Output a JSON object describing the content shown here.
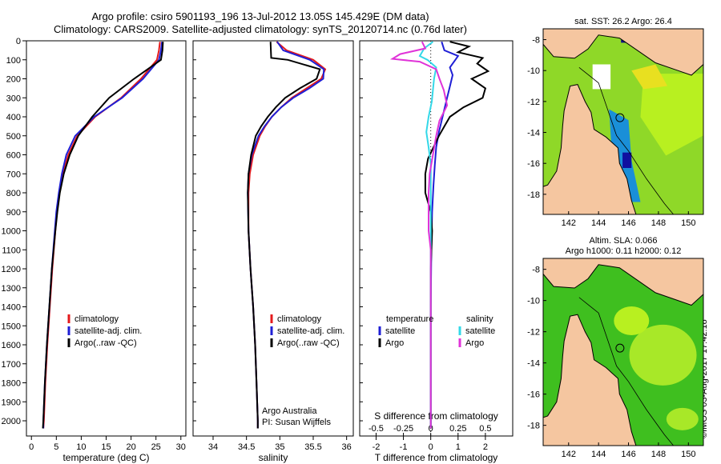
{
  "header": {
    "title_line1": "Argo profile: csiro 5901193_196 13-Jul-2012 13.05S 145.429E (DM data)",
    "title_line2": "Climatology: CARS2009. Satellite-adjusted climatology: synTS_20120714.nc (0.76d later)"
  },
  "credit": "©IMOS 03-Aug-2017 17:42:18",
  "colors": {
    "climatology": "#e41a1c",
    "satellite": "#1f1fd6",
    "argo": "#000000",
    "sat_salinity": "#33d8e8",
    "argo_salinity": "#e033d8",
    "land": "#f5c6a0",
    "green_dark": "#3fbf1f",
    "green_light": "#b8f020",
    "yellow": "#e8e020",
    "blue_band": "#1a8fd8"
  },
  "chart_data": [
    {
      "id": "temperature",
      "type": "line",
      "xlabel": "temperature (deg C)",
      "ylabel": "",
      "xlim": [
        -1,
        31
      ],
      "ylim": [
        2080,
        0
      ],
      "xticks": [
        0,
        5,
        10,
        15,
        20,
        25,
        30
      ],
      "yticks": [
        0,
        100,
        200,
        300,
        400,
        500,
        600,
        700,
        800,
        900,
        1000,
        1100,
        1200,
        1300,
        1400,
        1500,
        1600,
        1700,
        1800,
        1900,
        2000
      ],
      "legend": [
        "climatology",
        "satellite-adj. clim.",
        "Argo(..raw -QC)"
      ],
      "series": [
        {
          "name": "climatology",
          "color_key": "climatology",
          "depth": [
            5,
            50,
            100,
            200,
            300,
            400,
            500,
            600,
            700,
            800,
            900,
            1000,
            1200,
            1400,
            1600,
            1800,
            2000,
            2040
          ],
          "values": [
            25.8,
            25.6,
            25.2,
            22.0,
            18.0,
            12.8,
            9.2,
            7.4,
            6.3,
            5.6,
            5.1,
            4.8,
            4.2,
            3.7,
            3.2,
            2.8,
            2.5,
            2.4
          ]
        },
        {
          "name": "satellite-adj. clim.",
          "color_key": "satellite",
          "depth": [
            5,
            50,
            100,
            200,
            300,
            400,
            500,
            600,
            700,
            800,
            900,
            1000,
            1200,
            1400,
            1600,
            1800,
            2000,
            2040
          ],
          "values": [
            26.2,
            26.0,
            25.6,
            22.4,
            18.2,
            12.6,
            8.8,
            7.0,
            6.1,
            5.5,
            5.0,
            4.7,
            4.1,
            3.6,
            3.1,
            2.7,
            2.4,
            2.4
          ]
        },
        {
          "name": "Argo(..raw -QC)",
          "color_key": "argo",
          "depth": [
            5,
            50,
            100,
            200,
            300,
            400,
            500,
            600,
            700,
            800,
            900,
            1000,
            1200,
            1400,
            1600,
            1800,
            2000,
            2040
          ],
          "values": [
            26.4,
            26.3,
            26.0,
            20.6,
            15.6,
            12.2,
            9.4,
            7.7,
            6.5,
            5.7,
            5.2,
            4.8,
            4.1,
            3.6,
            3.1,
            2.7,
            2.4,
            2.3
          ]
        }
      ]
    },
    {
      "id": "salinity",
      "type": "line",
      "xlabel": "salinity",
      "ylabel": "",
      "xlim": [
        33.7,
        36.1
      ],
      "ylim": [
        2080,
        0
      ],
      "xticks": [
        34,
        34.5,
        35,
        35.5,
        36
      ],
      "legend": [
        "climatology",
        "satellite-adj. clim.",
        "Argo(..raw -QC)"
      ],
      "annotation_line1": "Argo Australia",
      "annotation_line2": "PI: Susan Wijffels",
      "series": [
        {
          "name": "climatology",
          "color_key": "climatology",
          "depth": [
            5,
            50,
            100,
            150,
            200,
            250,
            300,
            350,
            400,
            450,
            500,
            600,
            700,
            800,
            1000,
            1200,
            1400,
            1600,
            1800,
            2000,
            2040
          ],
          "values": [
            34.95,
            35.1,
            35.5,
            35.68,
            35.62,
            35.4,
            35.18,
            35.02,
            34.88,
            34.78,
            34.7,
            34.6,
            34.55,
            34.53,
            34.53,
            34.56,
            34.6,
            34.63,
            34.65,
            34.67,
            34.67
          ]
        },
        {
          "name": "satellite-adj. clim.",
          "color_key": "satellite",
          "depth": [
            5,
            50,
            100,
            150,
            200,
            250,
            300,
            350,
            400,
            450,
            500,
            600,
            700,
            800,
            1000,
            1200,
            1400,
            1600,
            1800,
            2000,
            2040
          ],
          "values": [
            34.96,
            35.05,
            35.45,
            35.66,
            35.65,
            35.44,
            35.2,
            35.02,
            34.88,
            34.77,
            34.68,
            34.58,
            34.53,
            34.52,
            34.53,
            34.56,
            34.6,
            34.63,
            34.65,
            34.67,
            34.67
          ]
        },
        {
          "name": "Argo(..raw -QC)",
          "color_key": "argo",
          "depth": [
            5,
            90,
            100,
            150,
            200,
            250,
            300,
            350,
            400,
            450,
            500,
            600,
            700,
            800,
            1000,
            1200,
            1400,
            1600,
            1800,
            2000,
            2040
          ],
          "values": [
            34.86,
            34.87,
            35.12,
            35.6,
            35.55,
            35.3,
            35.08,
            34.94,
            34.82,
            34.72,
            34.64,
            34.57,
            34.53,
            34.52,
            34.53,
            34.56,
            34.6,
            34.63,
            34.65,
            34.67,
            34.67
          ]
        }
      ]
    },
    {
      "id": "differences",
      "type": "line",
      "xlabel": "T difference from climatology",
      "x2label": "S difference from climatology",
      "xlim": [
        -2.6,
        3.0
      ],
      "ylim": [
        2080,
        0
      ],
      "xticks": [
        -2,
        -1,
        0,
        1,
        2
      ],
      "x2ticks": [
        -0.5,
        -0.25,
        0,
        0.25,
        0.5
      ],
      "x2tick_labels": [
        "-0.5",
        "-0.25",
        "0",
        "0.25",
        "0.5"
      ],
      "legend_temperature_title": "temperature",
      "legend_salinity_title": "salinity",
      "legend_sat_label": "satellite",
      "legend_argo_label": "Argo",
      "series": [
        {
          "name": "T satellite",
          "color_key": "satellite",
          "depth": [
            5,
            50,
            80,
            100,
            140,
            180,
            240,
            300,
            360,
            420,
            480,
            560,
            650,
            760,
            900,
            1100,
            1400,
            1800,
            2040
          ],
          "values": [
            0.4,
            0.5,
            1.0,
            0.9,
            0.7,
            0.8,
            0.7,
            0.6,
            0.5,
            0.4,
            0.3,
            0.2,
            0.15,
            0.1,
            0.05,
            0.02,
            0.0,
            0.0,
            0.0
          ]
        },
        {
          "name": "T Argo",
          "color_key": "argo",
          "depth": [
            5,
            30,
            60,
            90,
            120,
            160,
            200,
            250,
            300,
            350,
            400,
            450,
            500,
            560,
            620,
            700,
            800,
            900,
            1000,
            1200,
            1500,
            1800,
            2040
          ],
          "values": [
            0.7,
            1.4,
            1.0,
            1.9,
            1.7,
            2.1,
            1.5,
            2.0,
            1.9,
            1.2,
            0.7,
            0.5,
            0.3,
            0.1,
            -0.1,
            -0.2,
            -0.2,
            0.0,
            0.05,
            0.0,
            0.0,
            0.0,
            0.0
          ]
        },
        {
          "name": "S satellite",
          "color_key": "sat_salinity",
          "depth": [
            5,
            40,
            80,
            100,
            140,
            200,
            260,
            320,
            400,
            480,
            560,
            650,
            760,
            900,
            1100,
            1400,
            1800,
            2040
          ],
          "values": [
            0.02,
            -0.06,
            -0.1,
            -0.03,
            0.05,
            0.03,
            0.02,
            0.01,
            -0.02,
            -0.04,
            -0.02,
            0.0,
            0.0,
            0.0,
            0.0,
            0.0,
            0.0,
            0.0
          ]
        },
        {
          "name": "S Argo",
          "color_key": "argo_salinity",
          "depth": [
            5,
            40,
            70,
            95,
            110,
            150,
            200,
            260,
            340,
            420,
            500,
            600,
            700,
            800,
            900,
            1000,
            1100,
            1300,
            1600,
            1800,
            2040
          ],
          "values": [
            -0.08,
            -0.05,
            -0.28,
            -0.35,
            -0.1,
            0.05,
            0.08,
            0.12,
            0.15,
            0.08,
            0.05,
            0.02,
            -0.01,
            -0.02,
            -0.02,
            -0.02,
            0.0,
            0.0,
            0.0,
            0.0,
            0.0
          ]
        }
      ]
    },
    {
      "id": "sst-map",
      "type": "heatmap",
      "title": "sat. SST: 26.2  Argo: 26.4",
      "xticks": [
        142,
        144,
        146,
        148,
        150
      ],
      "yticks": [
        -8,
        -10,
        -12,
        -14,
        -16,
        -18
      ],
      "xlim": [
        140.3,
        151.0
      ],
      "ylim": [
        -19.3,
        -7.3
      ],
      "argo_marker": [
        145.429,
        -13.05
      ]
    },
    {
      "id": "sla-map",
      "type": "heatmap",
      "title_line1": "Altim. SLA: 0.066",
      "title_line2": "Argo h1000: 0.11  h2000: 0.12",
      "xticks": [
        142,
        144,
        146,
        148,
        150
      ],
      "yticks": [
        -8,
        -10,
        -12,
        -14,
        -16,
        -18
      ],
      "xlim": [
        140.3,
        151.0
      ],
      "ylim": [
        -19.3,
        -7.3
      ],
      "argo_marker": [
        145.429,
        -13.05
      ]
    }
  ]
}
